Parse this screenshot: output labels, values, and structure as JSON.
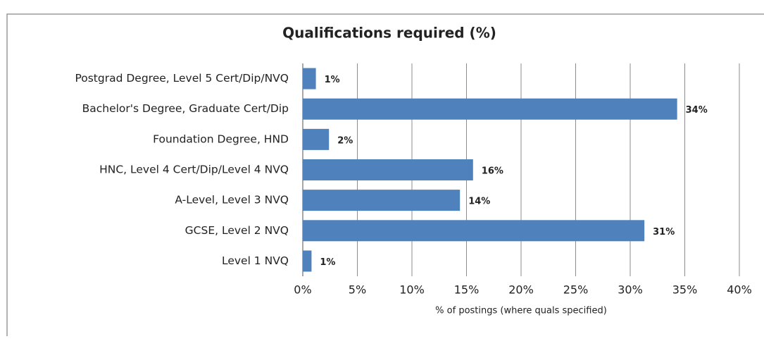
{
  "chart_data": {
    "type": "bar",
    "orientation": "horizontal",
    "title": "Qualifications required (%)",
    "x_label": "% of postings (where quals specified)",
    "categories": [
      "Postgrad Degree, Level 5 Cert/Dip/NVQ",
      "Bachelor's Degree, Graduate Cert/Dip",
      "Foundation Degree, HND",
      "HNC, Level 4 Cert/Dip/Level 4 NVQ",
      "A-Level, Level 3 NVQ",
      "GCSE, Level 2 NVQ",
      "Level 1 NVQ"
    ],
    "values": [
      1.2,
      34.3,
      2.4,
      15.6,
      14.4,
      31.3,
      0.8
    ],
    "value_labels": [
      "1%",
      "34%",
      "2%",
      "16%",
      "14%",
      "31%",
      "1%"
    ],
    "color": "#4f81bd",
    "xlim": [
      0,
      40
    ],
    "xticks": [
      {
        "value": 0,
        "label": "0%"
      },
      {
        "value": 5,
        "label": "5%"
      },
      {
        "value": 10,
        "label": "10%"
      },
      {
        "value": 15,
        "label": "15%"
      },
      {
        "value": 20,
        "label": "20%"
      },
      {
        "value": 25,
        "label": "25%"
      },
      {
        "value": 30,
        "label": "30%"
      },
      {
        "value": 35,
        "label": "35%"
      },
      {
        "value": 40,
        "label": "40%"
      }
    ],
    "grid": true
  }
}
